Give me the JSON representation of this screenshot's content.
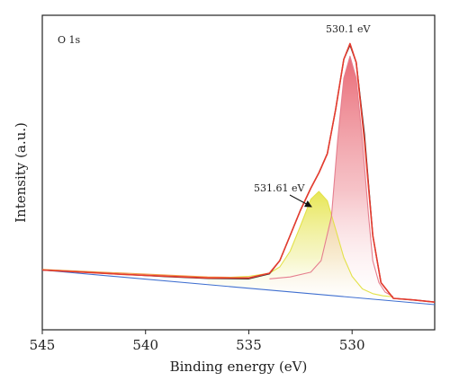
{
  "chart_data": {
    "type": "line",
    "panel_label": "O 1s",
    "xlabel": "Binding energy (eV)",
    "ylabel": "Intensity (a.u.)",
    "x_reversed": true,
    "xlim": [
      545,
      526
    ],
    "ylim": [
      0,
      1
    ],
    "x_ticks": [
      545,
      540,
      535,
      530
    ],
    "y_ticks_shown": false,
    "grid": false,
    "annotations": [
      {
        "text": "530.1 eV",
        "x": 530.1
      },
      {
        "text": "531.61 eV",
        "x": 531.61
      }
    ],
    "series": [
      {
        "role": "raw_data",
        "color": "#333333",
        "x": [
          545,
          543,
          541,
          539,
          537,
          535,
          534,
          533.5,
          533,
          532.5,
          532,
          531.6,
          531.2,
          530.8,
          530.4,
          530.1,
          529.8,
          529.4,
          529,
          528.6,
          528,
          527,
          526
        ],
        "y": [
          0.19,
          0.183,
          0.176,
          0.169,
          0.163,
          0.162,
          0.178,
          0.22,
          0.3,
          0.38,
          0.45,
          0.5,
          0.56,
          0.7,
          0.86,
          0.905,
          0.85,
          0.62,
          0.3,
          0.15,
          0.1,
          0.095,
          0.088
        ]
      },
      {
        "role": "background",
        "color": "#3f6fd0",
        "x": [
          545,
          526
        ],
        "y": [
          0.19,
          0.08
        ]
      },
      {
        "role": "component",
        "peak_eV": 531.61,
        "color": "#e3e24a",
        "x": [
          537,
          535,
          534,
          533.5,
          533,
          532.5,
          532,
          531.61,
          531.2,
          530.8,
          530.4,
          530,
          529.5,
          529,
          528.5,
          528
        ],
        "y": [
          0.163,
          0.17,
          0.18,
          0.2,
          0.25,
          0.33,
          0.415,
          0.44,
          0.41,
          0.32,
          0.23,
          0.17,
          0.13,
          0.115,
          0.108,
          0.105
        ]
      },
      {
        "role": "component",
        "peak_eV": 530.1,
        "color": "#e57e8e",
        "x": [
          534,
          533,
          532,
          531.5,
          531,
          530.7,
          530.4,
          530.1,
          529.8,
          529.5,
          529.2,
          529,
          528.7,
          528.4,
          528
        ],
        "y": [
          0.162,
          0.168,
          0.183,
          0.22,
          0.36,
          0.6,
          0.8,
          0.87,
          0.8,
          0.6,
          0.36,
          0.22,
          0.15,
          0.12,
          0.105
        ]
      },
      {
        "role": "envelope",
        "color": "#e63b2e",
        "x": [
          545,
          541,
          537,
          535,
          534,
          533.5,
          533,
          532.5,
          532,
          531.6,
          531.2,
          530.8,
          530.4,
          530.1,
          529.8,
          529.4,
          529,
          528.6,
          528,
          527,
          526
        ],
        "y": [
          0.19,
          0.176,
          0.165,
          0.165,
          0.18,
          0.22,
          0.3,
          0.38,
          0.45,
          0.5,
          0.56,
          0.7,
          0.86,
          0.91,
          0.85,
          0.6,
          0.3,
          0.15,
          0.1,
          0.095,
          0.088
        ]
      },
      {
        "role": "baseline_extra",
        "color": "#f0a04a",
        "x": [
          545,
          537,
          535
        ],
        "y": [
          0.192,
          0.168,
          0.166
        ]
      }
    ]
  }
}
